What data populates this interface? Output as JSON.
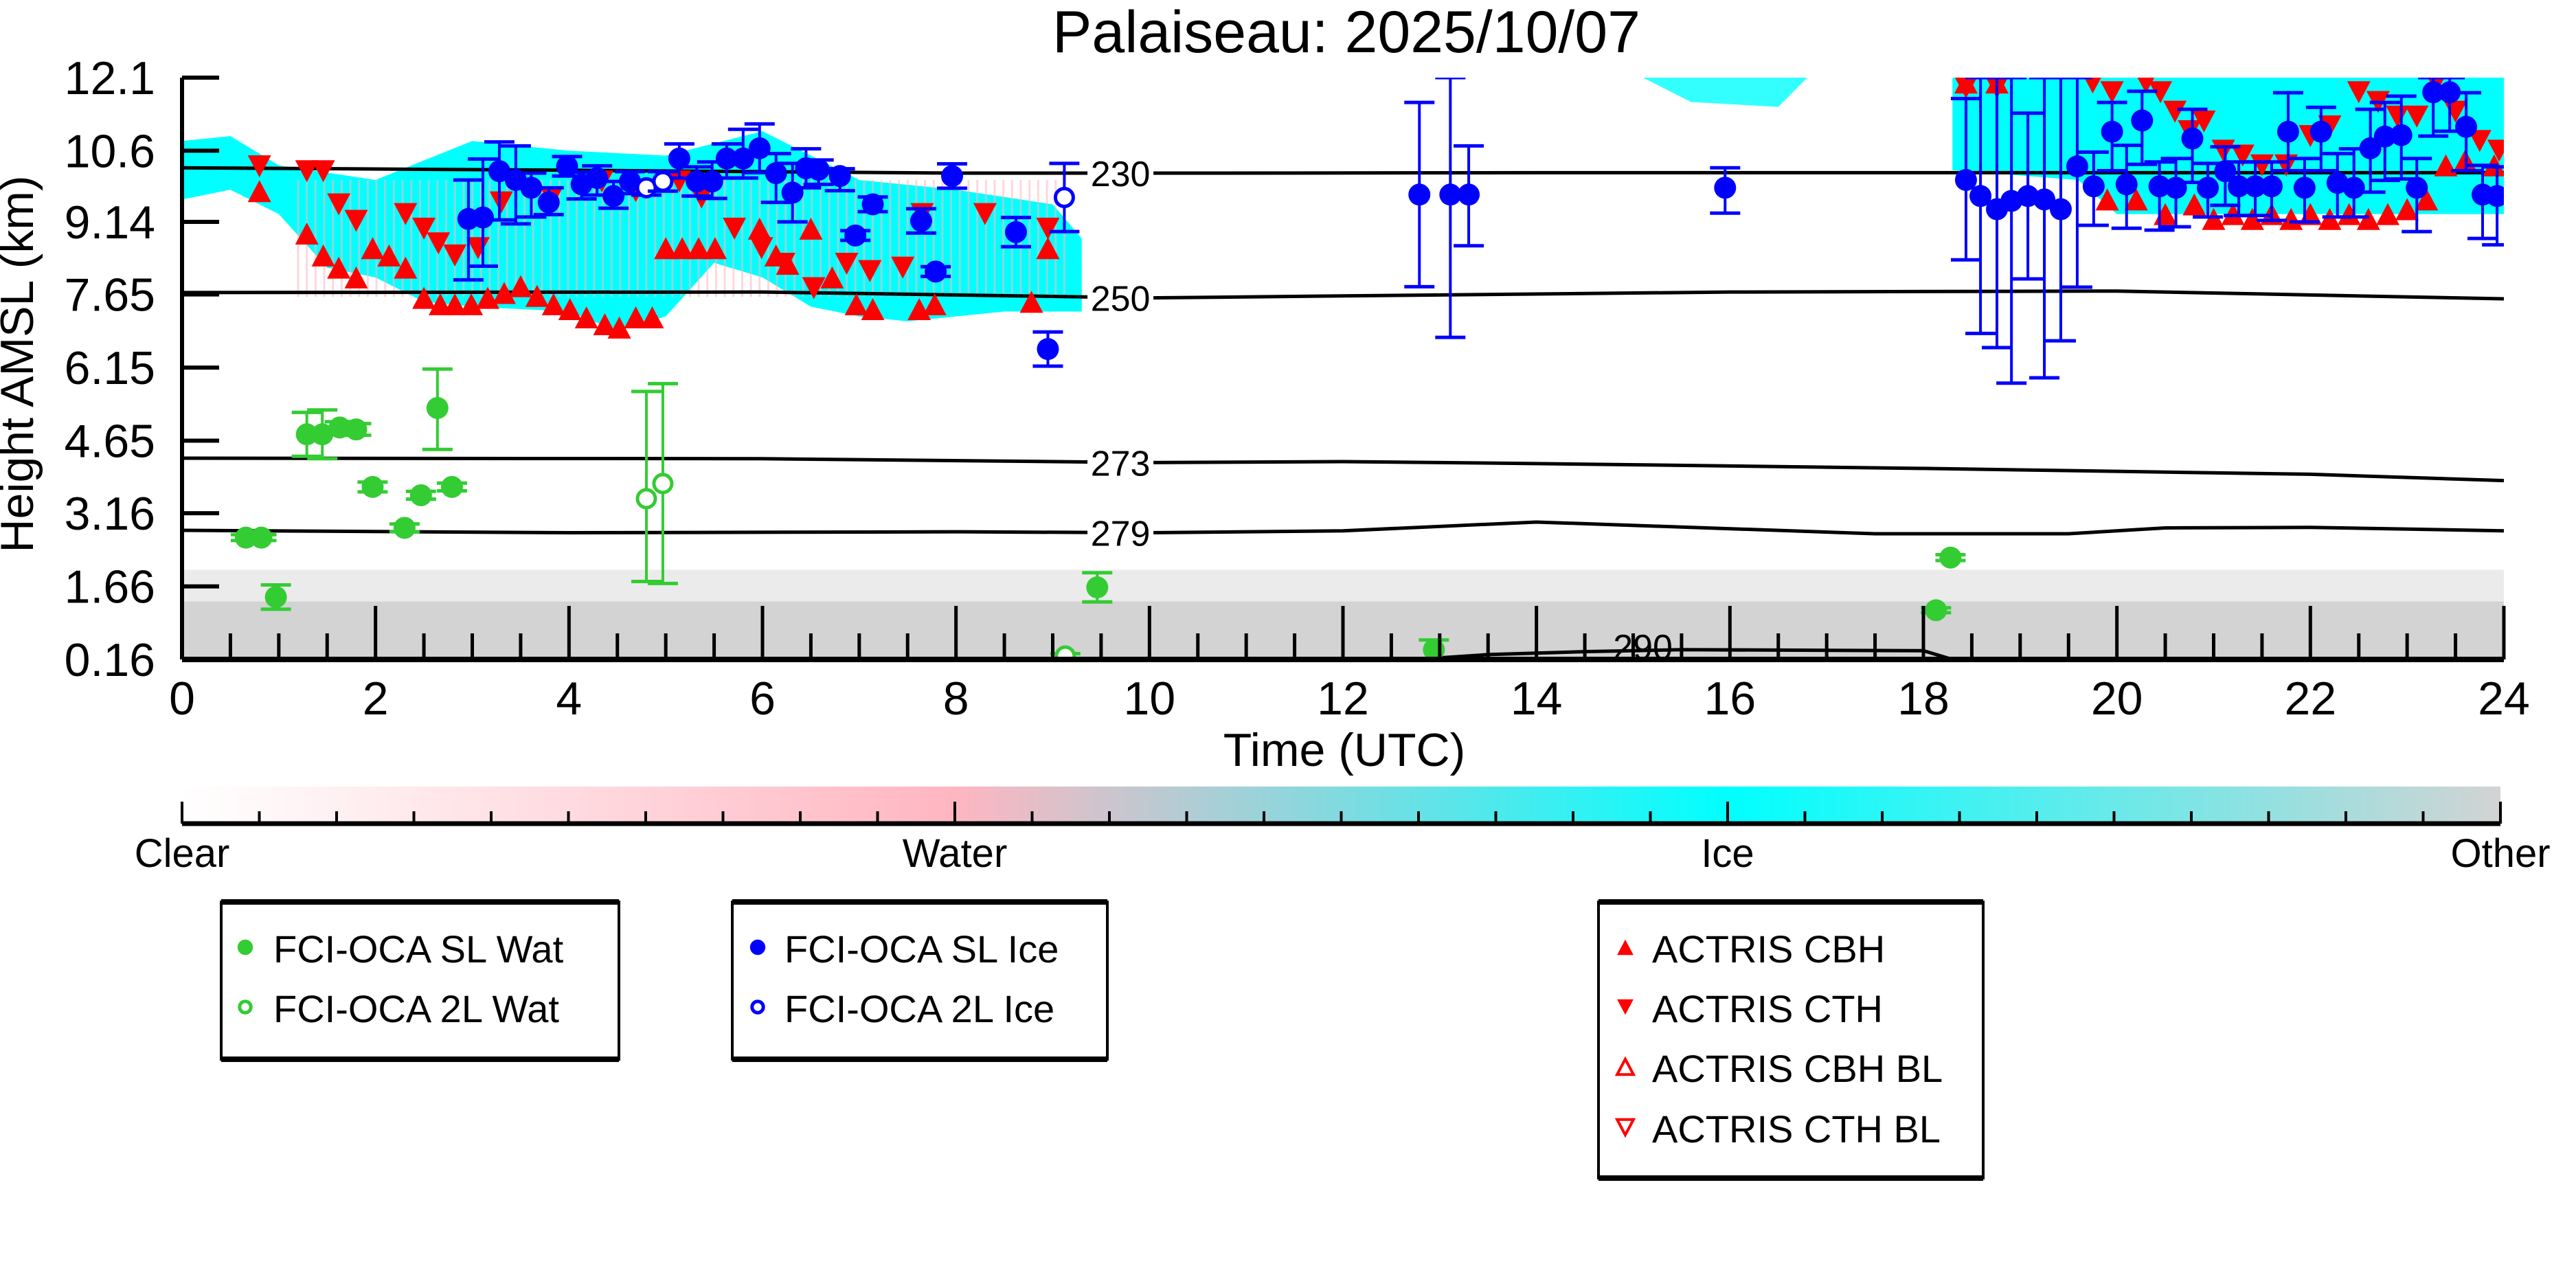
{
  "chart_data": {
    "type": "scatter",
    "title": "Palaiseau: 2025/10/07",
    "xlabel": "Time (UTC)",
    "ylabel": "Height AMSL (km)",
    "xlim": [
      0,
      24
    ],
    "ylim": [
      0.16,
      12.1
    ],
    "x_ticks": [
      "0",
      "2",
      "4",
      "6",
      "8",
      "10",
      "12",
      "14",
      "16",
      "18",
      "20",
      "22",
      "24"
    ],
    "y_ticks": [
      "0.16",
      "1.66",
      "3.16",
      "4.65",
      "6.15",
      "7.65",
      "9.14",
      "10.6",
      "12.1"
    ],
    "grid": false,
    "colorbar": {
      "labels": [
        "Clear",
        "Water",
        "Ice",
        "Other"
      ],
      "colors": [
        "#ffffff",
        "#ffb6c1",
        "#00ffff",
        "#d3d3d3"
      ]
    },
    "isotherms": [
      {
        "label": "230",
        "points": [
          [
            0,
            10.25
          ],
          [
            4,
            10.2
          ],
          [
            8,
            10.14
          ],
          [
            10.6,
            10.14
          ],
          [
            14,
            10.15
          ],
          [
            18,
            10.15
          ],
          [
            24,
            10.15
          ]
        ]
      },
      {
        "label": "250",
        "points": [
          [
            0,
            7.69
          ],
          [
            6,
            7.7
          ],
          [
            10,
            7.58
          ],
          [
            12,
            7.62
          ],
          [
            16,
            7.7
          ],
          [
            20,
            7.72
          ],
          [
            24,
            7.56
          ]
        ]
      },
      {
        "label": "273",
        "points": [
          [
            0,
            4.29
          ],
          [
            6,
            4.28
          ],
          [
            10,
            4.2
          ],
          [
            12,
            4.22
          ],
          [
            14,
            4.18
          ],
          [
            18,
            4.08
          ],
          [
            22,
            3.96
          ],
          [
            24,
            3.83
          ]
        ]
      },
      {
        "label": "279",
        "points": [
          [
            0,
            2.81
          ],
          [
            4,
            2.76
          ],
          [
            8,
            2.78
          ],
          [
            10,
            2.76
          ],
          [
            12,
            2.8
          ],
          [
            14,
            2.98
          ],
          [
            17.5,
            2.74
          ],
          [
            19.5,
            2.74
          ],
          [
            20.5,
            2.86
          ],
          [
            22,
            2.87
          ],
          [
            24,
            2.8
          ]
        ]
      },
      {
        "label": "290",
        "points": [
          [
            12.75,
            0.16
          ],
          [
            13.5,
            0.26
          ],
          [
            14.5,
            0.32
          ],
          [
            15.5,
            0.36
          ],
          [
            18,
            0.34
          ],
          [
            18.3,
            0.16
          ]
        ]
      }
    ],
    "series": [
      {
        "name": "FCI-OCA SL Wat",
        "color": "#33cc33",
        "marker": "circle-filled",
        "points": [
          [
            0.66,
            2.66,
            0.06,
            0.06
          ],
          [
            0.82,
            2.66,
            0.06,
            0.06
          ],
          [
            0.97,
            1.44,
            0.25,
            0.25
          ],
          [
            1.29,
            4.78,
            0.45,
            0.45
          ],
          [
            1.45,
            4.78,
            0.5,
            0.5
          ],
          [
            1.63,
            4.92,
            0.12,
            0.12
          ],
          [
            1.8,
            4.88,
            0.12,
            0.12
          ],
          [
            1.97,
            3.7,
            0.1,
            0.1
          ],
          [
            2.3,
            2.86,
            0.08,
            0.08
          ],
          [
            2.47,
            3.53,
            0.08,
            0.08
          ],
          [
            2.64,
            5.32,
            0.85,
            0.8
          ],
          [
            2.79,
            3.7,
            0.08,
            0.08
          ],
          [
            9.46,
            1.64,
            0.3,
            0.3
          ],
          [
            12.94,
            0.36,
            0.2,
            0.2
          ],
          [
            18.13,
            1.17,
            0.05,
            0.05
          ],
          [
            18.28,
            2.25,
            0.06,
            0.06
          ]
        ]
      },
      {
        "name": "FCI-OCA 2L Wat",
        "color": "#33cc33",
        "marker": "circle-open",
        "points": [
          [
            4.8,
            3.46,
            1.7,
            2.2
          ],
          [
            4.97,
            3.77,
            2.05,
            2.05
          ],
          [
            9.13,
            0.23,
            0.05,
            0.05
          ]
        ]
      },
      {
        "name": "FCI-OCA SL Ice",
        "color": "#0000ff",
        "marker": "circle-filled",
        "points": [
          [
            2.96,
            9.2,
            1.25,
            0.8
          ],
          [
            3.11,
            9.23,
            1.0,
            1.2
          ],
          [
            3.28,
            10.18,
            1.0,
            0.6
          ],
          [
            3.45,
            10.0,
            0.9,
            0.7
          ],
          [
            3.61,
            9.84,
            0.6,
            0.3
          ],
          [
            3.79,
            9.54,
            0.25,
            0.3
          ],
          [
            3.98,
            10.28,
            0.2,
            0.2
          ],
          [
            4.13,
            9.91,
            0.3,
            0.25
          ],
          [
            4.29,
            10.04,
            0.35,
            0.25
          ],
          [
            4.46,
            9.67,
            0.25,
            0.3
          ],
          [
            4.63,
            9.97,
            0.25,
            0.2
          ],
          [
            5.14,
            10.44,
            0.4,
            0.3
          ],
          [
            5.32,
            9.97,
            0.3,
            0.3
          ],
          [
            5.48,
            9.97,
            0.35,
            0.4
          ],
          [
            5.63,
            10.44,
            0.4,
            0.3
          ],
          [
            5.8,
            10.44,
            0.4,
            0.6
          ],
          [
            5.97,
            10.65,
            0.5,
            0.5
          ],
          [
            6.14,
            10.14,
            0.6,
            0.4
          ],
          [
            6.31,
            9.74,
            0.6,
            0.6
          ],
          [
            6.45,
            10.24,
            0.4,
            0.4
          ],
          [
            6.58,
            10.21,
            0.3,
            0.2
          ],
          [
            6.8,
            10.08,
            0.3,
            0.15
          ],
          [
            6.96,
            8.86,
            0.1,
            0.1
          ],
          [
            7.14,
            9.5,
            0.15,
            0.15
          ],
          [
            7.64,
            9.16,
            0.25,
            0.25
          ],
          [
            7.79,
            8.12,
            0.1,
            0.1
          ],
          [
            7.96,
            10.08,
            0.25,
            0.25
          ],
          [
            8.62,
            8.93,
            0.3,
            0.3
          ],
          [
            8.95,
            6.53,
            0.35,
            0.35
          ],
          [
            12.79,
            9.7,
            1.89,
            1.89
          ],
          [
            13.11,
            9.7,
            2.93,
            2.4
          ],
          [
            13.3,
            9.7,
            1.05,
            1.0
          ],
          [
            15.95,
            9.84,
            0.52,
            0.41
          ],
          [
            18.44,
            10.0,
            1.64,
            1.67
          ],
          [
            18.59,
            9.67,
            2.82,
            2.43
          ],
          [
            18.76,
            9.4,
            2.84,
            2.7
          ],
          [
            18.91,
            9.57,
            3.74,
            2.53
          ],
          [
            19.08,
            9.67,
            1.7,
            1.7
          ],
          [
            19.25,
            9.6,
            3.66,
            2.5
          ],
          [
            19.42,
            9.4,
            2.7,
            2.7
          ],
          [
            19.59,
            10.28,
            2.48,
            1.82
          ],
          [
            19.76,
            9.87,
            0.8,
            0.7
          ],
          [
            19.95,
            10.99,
            0.8,
            0.6
          ],
          [
            20.1,
            9.91,
            0.9,
            0.8
          ],
          [
            20.26,
            11.22,
            0.9,
            0.6
          ],
          [
            20.44,
            9.87,
            0.9,
            0.5
          ],
          [
            20.61,
            9.84,
            0.8,
            0.6
          ],
          [
            20.78,
            10.85,
            0.9,
            0.6
          ],
          [
            20.94,
            9.84,
            0.6,
            0.5
          ],
          [
            21.12,
            10.18,
            0.7,
            0.5
          ],
          [
            21.26,
            9.87,
            0.6,
            0.5
          ],
          [
            21.43,
            9.87,
            0.6,
            0.5
          ],
          [
            21.6,
            9.87,
            0.7,
            0.5
          ],
          [
            21.77,
            10.99,
            0.8,
            0.8
          ],
          [
            21.94,
            9.84,
            0.7,
            0.6
          ],
          [
            22.11,
            10.99,
            0.8,
            0.5
          ],
          [
            22.28,
            9.94,
            0.7,
            0.6
          ],
          [
            22.45,
            9.84,
            0.6,
            0.8
          ],
          [
            22.62,
            10.65,
            0.9,
            0.8
          ],
          [
            22.77,
            10.89,
            0.9,
            0.7
          ],
          [
            22.94,
            10.92,
            0.9,
            0.8
          ],
          [
            23.1,
            9.84,
            0.9,
            0.6
          ],
          [
            23.27,
            11.8,
            0.9,
            0.3
          ],
          [
            23.44,
            11.8,
            0.8,
            0.3
          ],
          [
            23.61,
            11.09,
            0.9,
            0.7
          ],
          [
            23.78,
            9.7,
            0.9,
            0.6
          ],
          [
            23.93,
            9.67,
            1.0,
            0.6
          ]
        ]
      },
      {
        "name": "FCI-OCA 2L Ice",
        "color": "#0000ff",
        "marker": "circle-open",
        "points": [
          [
            4.8,
            9.84,
            0.15,
            0.15
          ],
          [
            4.97,
            9.97,
            0.2,
            0.2
          ],
          [
            9.12,
            9.64,
            0.7,
            0.7
          ]
        ]
      },
      {
        "name": "ACTRIS CBH",
        "color": "#ff0000",
        "marker": "triangle-up-filled",
        "points": [
          [
            0.8,
            9.77
          ],
          [
            1.29,
            8.9
          ],
          [
            1.46,
            8.45
          ],
          [
            1.62,
            8.2
          ],
          [
            1.8,
            8.0
          ],
          [
            1.97,
            8.6
          ],
          [
            2.14,
            8.45
          ],
          [
            2.31,
            8.2
          ],
          [
            2.5,
            7.58
          ],
          [
            2.67,
            7.45
          ],
          [
            2.82,
            7.45
          ],
          [
            2.99,
            7.45
          ],
          [
            3.16,
            7.58
          ],
          [
            3.33,
            7.68
          ],
          [
            3.5,
            7.82
          ],
          [
            3.67,
            7.62
          ],
          [
            3.84,
            7.45
          ],
          [
            4.01,
            7.35
          ],
          [
            4.18,
            7.18
          ],
          [
            4.37,
            7.04
          ],
          [
            4.52,
            6.97
          ],
          [
            4.69,
            7.18
          ],
          [
            4.86,
            7.18
          ],
          [
            5.0,
            8.6
          ],
          [
            5.17,
            8.6
          ],
          [
            5.34,
            8.6
          ],
          [
            5.51,
            8.6
          ],
          [
            5.97,
            9.0
          ],
          [
            6.14,
            8.45
          ],
          [
            6.26,
            8.28
          ],
          [
            6.5,
            9.0
          ],
          [
            6.72,
            8.0
          ],
          [
            6.97,
            7.45
          ],
          [
            7.14,
            7.35
          ],
          [
            7.62,
            7.35
          ],
          [
            7.78,
            7.45
          ],
          [
            8.78,
            7.5
          ],
          [
            8.95,
            8.6
          ],
          [
            18.44,
            12.0
          ],
          [
            18.76,
            12.0
          ],
          [
            19.9,
            9.6
          ],
          [
            20.2,
            9.6
          ],
          [
            20.5,
            9.3
          ],
          [
            20.8,
            9.5
          ],
          [
            21.0,
            9.2
          ],
          [
            21.2,
            9.3
          ],
          [
            21.4,
            9.2
          ],
          [
            21.6,
            9.3
          ],
          [
            21.8,
            9.2
          ],
          [
            22.0,
            9.3
          ],
          [
            22.2,
            9.2
          ],
          [
            22.4,
            9.3
          ],
          [
            22.6,
            9.2
          ],
          [
            22.8,
            9.3
          ],
          [
            23.0,
            9.4
          ],
          [
            23.2,
            9.6
          ],
          [
            23.4,
            10.3
          ],
          [
            23.6,
            10.4
          ],
          [
            23.9,
            10.3
          ]
        ]
      },
      {
        "name": "ACTRIS CTH",
        "color": "#ff0000",
        "marker": "triangle-down-filled",
        "points": [
          [
            0.8,
            10.28
          ],
          [
            1.29,
            10.18
          ],
          [
            1.46,
            10.18
          ],
          [
            1.62,
            9.5
          ],
          [
            1.8,
            9.16
          ],
          [
            2.31,
            9.3
          ],
          [
            2.5,
            9.0
          ],
          [
            2.65,
            8.7
          ],
          [
            2.82,
            8.45
          ],
          [
            3.06,
            8.6
          ],
          [
            3.3,
            9.54
          ],
          [
            3.82,
            9.64
          ],
          [
            4.34,
            9.97
          ],
          [
            4.69,
            9.77
          ],
          [
            5.14,
            9.97
          ],
          [
            5.37,
            9.64
          ],
          [
            5.71,
            9.0
          ],
          [
            5.99,
            8.6
          ],
          [
            6.22,
            8.28
          ],
          [
            6.53,
            7.78
          ],
          [
            6.87,
            8.28
          ],
          [
            7.11,
            8.13
          ],
          [
            7.45,
            8.2
          ],
          [
            7.65,
            9.3
          ],
          [
            8.3,
            9.3
          ],
          [
            8.95,
            9.0
          ],
          [
            18.44,
            11.9
          ],
          [
            18.76,
            11.9
          ],
          [
            19.75,
            12.0
          ],
          [
            19.95,
            11.8
          ],
          [
            20.3,
            12.0
          ],
          [
            20.45,
            11.8
          ],
          [
            20.6,
            11.4
          ],
          [
            20.75,
            11.0
          ],
          [
            20.9,
            11.2
          ],
          [
            21.1,
            10.6
          ],
          [
            21.3,
            10.5
          ],
          [
            21.5,
            10.3
          ],
          [
            21.75,
            10.3
          ],
          [
            22.0,
            10.9
          ],
          [
            22.2,
            11.1
          ],
          [
            22.5,
            11.8
          ],
          [
            22.7,
            11.6
          ],
          [
            22.9,
            11.3
          ],
          [
            23.1,
            11.3
          ],
          [
            23.3,
            12.0
          ],
          [
            23.5,
            11.4
          ],
          [
            23.75,
            10.8
          ],
          [
            23.95,
            10.6
          ]
        ]
      },
      {
        "name": "ACTRIS CBH BL",
        "color": "#ff0000",
        "marker": "triangle-up-open",
        "points": []
      },
      {
        "name": "ACTRIS CTH BL",
        "color": "#ff0000",
        "marker": "triangle-down-open",
        "points": []
      }
    ]
  }
}
